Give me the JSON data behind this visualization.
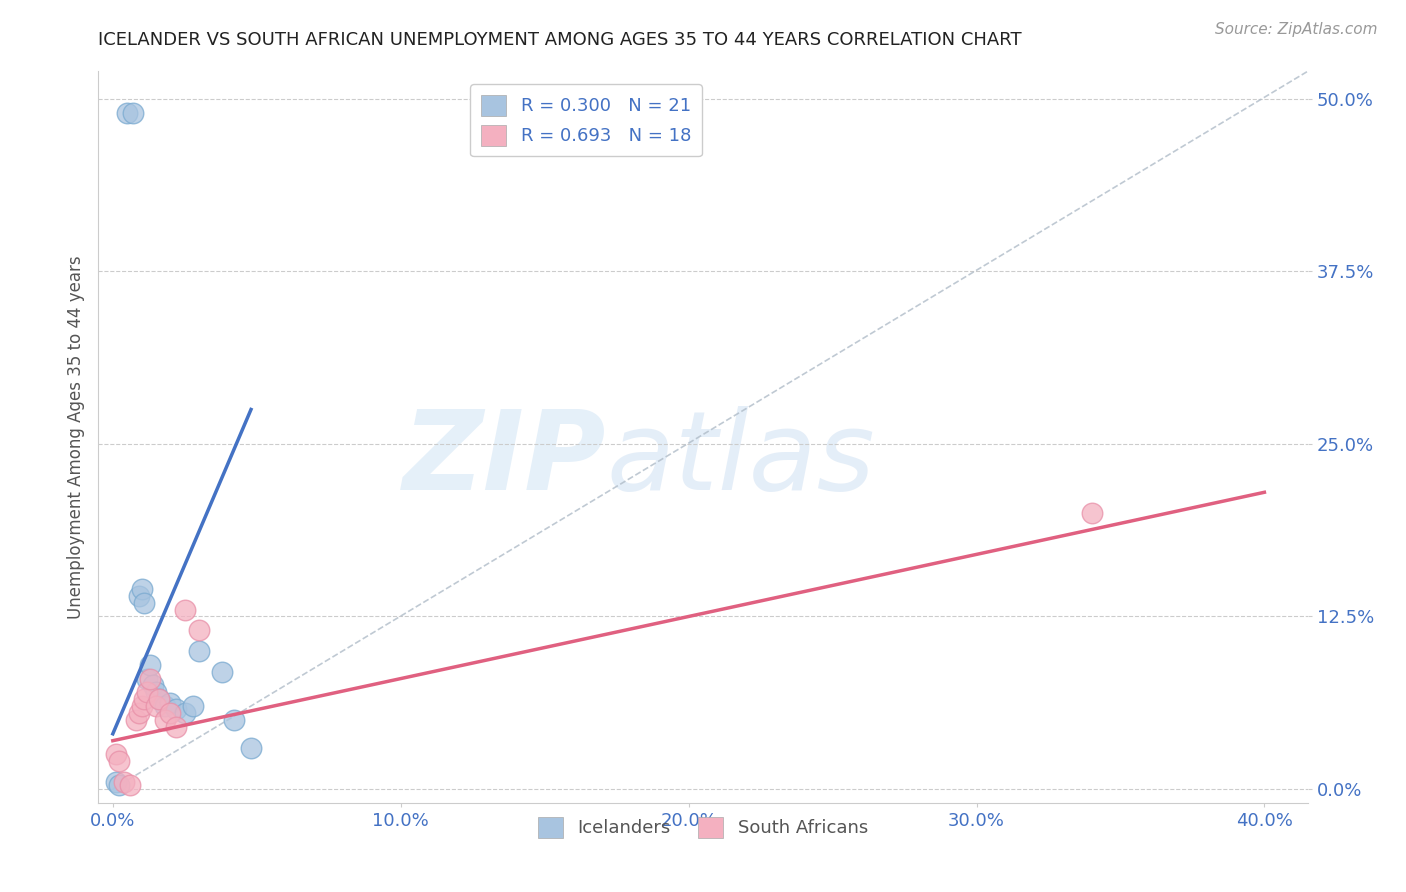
{
  "title": "ICELANDER VS SOUTH AFRICAN UNEMPLOYMENT AMONG AGES 35 TO 44 YEARS CORRELATION CHART",
  "source": "Source: ZipAtlas.com",
  "ylabel": "Unemployment Among Ages 35 to 44 years",
  "xlabel_ticks": [
    "0.0%",
    "10.0%",
    "20.0%",
    "30.0%",
    "40.0%"
  ],
  "xlabel_vals": [
    0.0,
    0.1,
    0.2,
    0.3,
    0.4
  ],
  "ylabel_ticks": [
    "0.0%",
    "12.5%",
    "25.0%",
    "37.5%",
    "50.0%"
  ],
  "ylabel_vals": [
    0.0,
    0.125,
    0.25,
    0.375,
    0.5
  ],
  "xlim": [
    -0.005,
    0.415
  ],
  "ylim": [
    -0.01,
    0.52
  ],
  "icelander_color": "#a8c4e0",
  "icelander_edge_color": "#7aaad0",
  "icelander_line_color": "#4472c4",
  "south_african_color": "#f4b0c0",
  "south_african_edge_color": "#e890a8",
  "south_african_line_color": "#e06080",
  "diagonal_color": "#b0bcc8",
  "R_icelander": 0.3,
  "N_icelander": 21,
  "R_south_african": 0.693,
  "N_south_african": 18,
  "watermark_zip": "ZIP",
  "watermark_atlas": "atlas",
  "title_color": "#222222",
  "axis_label_color": "#4472c4",
  "icelander_x": [
    0.001,
    0.002,
    0.005,
    0.007,
    0.009,
    0.01,
    0.011,
    0.012,
    0.013,
    0.014,
    0.015,
    0.016,
    0.018,
    0.02,
    0.022,
    0.025,
    0.028,
    0.03,
    0.038,
    0.042,
    0.048
  ],
  "icelander_y": [
    0.005,
    0.003,
    0.49,
    0.49,
    0.14,
    0.145,
    0.135,
    0.08,
    0.09,
    0.075,
    0.07,
    0.065,
    0.06,
    0.062,
    0.058,
    0.055,
    0.06,
    0.1,
    0.085,
    0.05,
    0.03
  ],
  "south_african_x": [
    0.001,
    0.002,
    0.004,
    0.006,
    0.008,
    0.009,
    0.01,
    0.011,
    0.012,
    0.013,
    0.015,
    0.016,
    0.018,
    0.02,
    0.022,
    0.025,
    0.03,
    0.34
  ],
  "south_african_y": [
    0.025,
    0.02,
    0.005,
    0.003,
    0.05,
    0.055,
    0.06,
    0.065,
    0.07,
    0.08,
    0.06,
    0.065,
    0.05,
    0.055,
    0.045,
    0.13,
    0.115,
    0.2
  ],
  "ice_line_x0": 0.0,
  "ice_line_y0": 0.04,
  "ice_line_x1": 0.048,
  "ice_line_y1": 0.275,
  "sa_line_x0": 0.0,
  "sa_line_y0": 0.035,
  "sa_line_x1": 0.4,
  "sa_line_y1": 0.215
}
